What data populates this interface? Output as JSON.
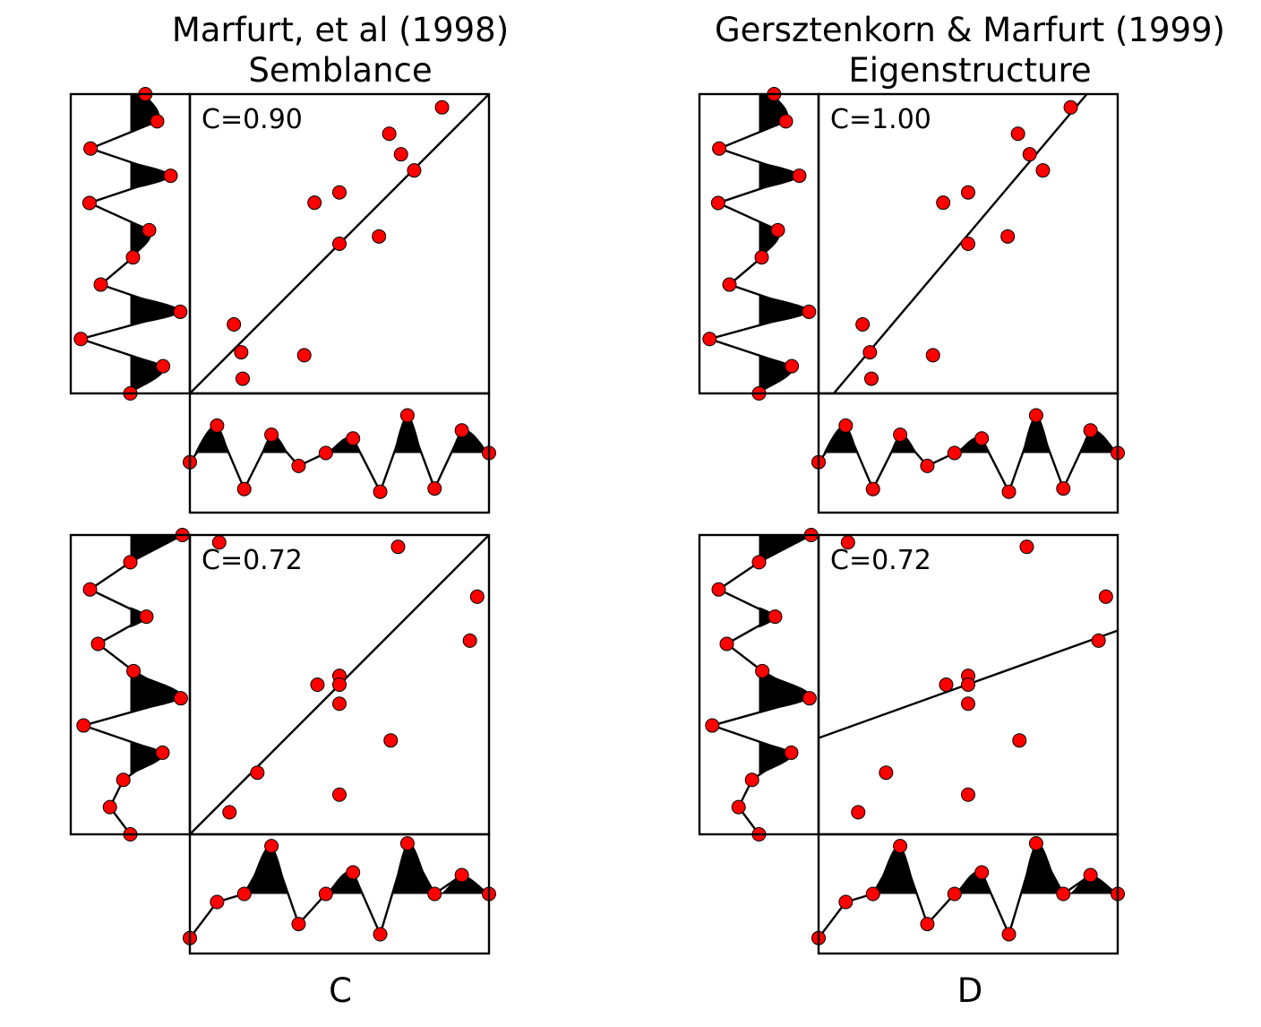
{
  "colors": {
    "point": "#ff0000",
    "point_edge": "#000000",
    "line": "#000000",
    "fill": "#000000",
    "background": "#ffffff"
  },
  "chart_data": [
    {
      "type": "scatter",
      "title": "Marfurt, et al (1998)",
      "subtitle": "Semblance",
      "annotation": "C=0.90",
      "fit_line": "diagonal",
      "xlabel": "",
      "trace_left": [
        0.28,
        0.5,
        -0.74,
        0.75,
        -0.76,
        0.35,
        0.05,
        -0.55,
        0.93,
        -0.92,
        0.61,
        0.0
      ],
      "trace_bottom": [
        -0.17,
        0.51,
        -0.67,
        0.34,
        -0.24,
        0.0,
        0.27,
        -0.72,
        0.7,
        -0.66,
        0.42,
        0.0
      ]
    },
    {
      "type": "scatter",
      "title": "Gersztenkorn & Marfurt (1999)",
      "subtitle": "Eigenstructure",
      "annotation": "C=1.00",
      "fit_line": "regression",
      "xlabel": "",
      "trace_left": [
        0.28,
        0.5,
        -0.74,
        0.75,
        -0.76,
        0.35,
        0.05,
        -0.55,
        0.93,
        -0.92,
        0.61,
        0.0
      ],
      "trace_bottom": [
        -0.17,
        0.51,
        -0.67,
        0.34,
        -0.24,
        0.0,
        0.27,
        -0.72,
        0.7,
        -0.66,
        0.42,
        0.0
      ]
    },
    {
      "type": "scatter",
      "title": "",
      "subtitle": "",
      "annotation": "C=0.72",
      "fit_line": "diagonal",
      "xlabel": "C",
      "trace_left": [
        0.97,
        0.0,
        -0.75,
        0.3,
        -0.6,
        0.06,
        0.94,
        -0.87,
        0.6,
        -0.13,
        -0.38,
        0.0
      ],
      "trace_bottom": [
        -0.82,
        -0.15,
        0.0,
        0.89,
        -0.56,
        0.0,
        0.4,
        -0.75,
        0.94,
        0.0,
        0.35,
        0.0
      ]
    },
    {
      "type": "scatter",
      "title": "",
      "subtitle": "",
      "annotation": "C=0.72",
      "fit_line": "regression",
      "xlabel": "D",
      "trace_left": [
        0.97,
        0.0,
        -0.75,
        0.3,
        -0.6,
        0.06,
        0.94,
        -0.87,
        0.6,
        -0.13,
        -0.38,
        0.0
      ],
      "trace_bottom": [
        -0.82,
        -0.15,
        0.0,
        0.89,
        -0.56,
        0.0,
        0.4,
        -0.75,
        0.94,
        0.0,
        0.35,
        0.0
      ]
    }
  ]
}
